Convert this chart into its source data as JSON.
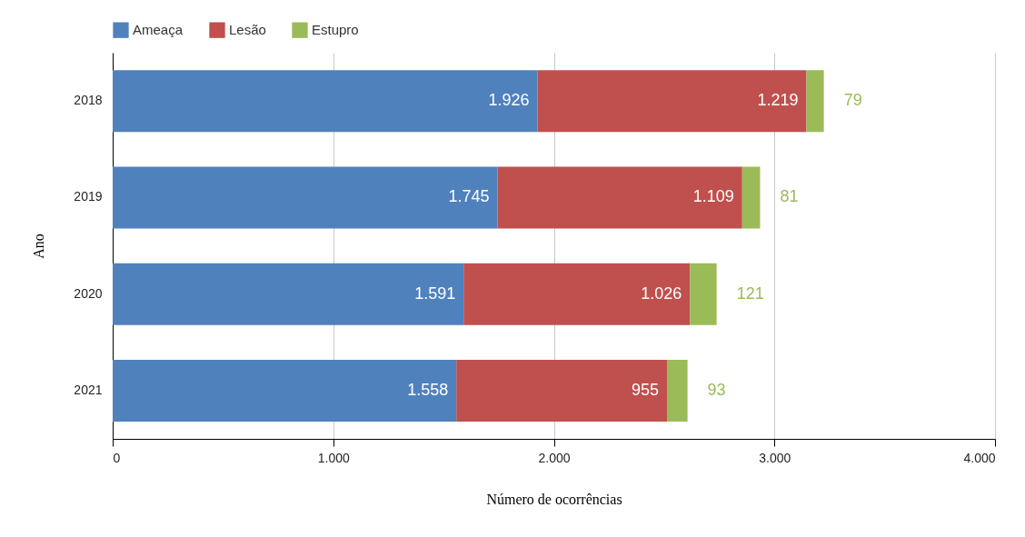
{
  "chart_data": {
    "type": "bar",
    "orientation": "horizontal",
    "stacked": true,
    "xlabel": "Número de ocorrências",
    "ylabel": "Ano",
    "categories": [
      "2018",
      "2019",
      "2020",
      "2021"
    ],
    "series": [
      {
        "name": "Ameaça",
        "color": "#4f81bd",
        "values": [
          1926,
          1745,
          1591,
          1558
        ],
        "value_labels": [
          "1.926",
          "1.745",
          "1.591",
          "1.558"
        ]
      },
      {
        "name": "Lesão",
        "color": "#c0504d",
        "values": [
          1219,
          1109,
          1026,
          955
        ],
        "value_labels": [
          "1.219",
          "1.109",
          "1.026",
          "955"
        ]
      },
      {
        "name": "Estupro",
        "color": "#9bbb59",
        "values": [
          79,
          81,
          121,
          93
        ],
        "value_labels": [
          "79",
          "81",
          "121",
          "93"
        ]
      }
    ],
    "xlim": [
      0,
      4000
    ],
    "xticks": [
      0,
      {
        "value": 1000,
        "label": "1.000"
      },
      {
        "value": 2000,
        "label": "2.000"
      },
      {
        "value": 3000,
        "label": "3.000"
      },
      {
        "value": 4000,
        "label": "4.000"
      }
    ],
    "grid": "x",
    "legend": "top"
  }
}
